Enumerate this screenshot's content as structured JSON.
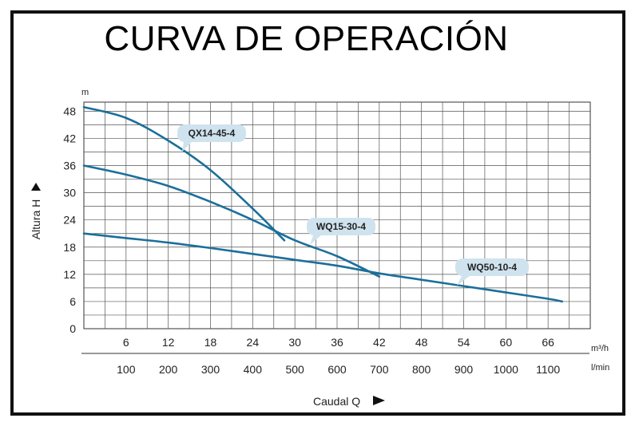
{
  "title": "CURVA DE OPERACIÓN",
  "chart_data": {
    "type": "line",
    "title": "CURVA DE OPERACIÓN",
    "ylabel": "Altura  H",
    "yunit": "m",
    "xlabel": "Caudal  Q",
    "xunit_primary": "m³/h",
    "xunit_secondary": "l/min",
    "xlim": [
      0,
      72
    ],
    "ylim": [
      0,
      50
    ],
    "xticks": [
      "6",
      "12",
      "18",
      "24",
      "30",
      "36",
      "42",
      "48",
      "54",
      "60",
      "66"
    ],
    "xticks_secondary": [
      "100",
      "200",
      "300",
      "400",
      "500",
      "600",
      "700",
      "800",
      "900",
      "1000",
      "1100"
    ],
    "yticks": [
      "0",
      "6",
      "12",
      "18",
      "24",
      "30",
      "36",
      "42",
      "48"
    ],
    "grid": true,
    "series": [
      {
        "name": "QX14-45-4",
        "x": [
          0,
          6,
          12,
          18,
          24,
          28.5
        ],
        "y": [
          48.9,
          46.5,
          41.5,
          35,
          26.5,
          19.5
        ]
      },
      {
        "name": "WQ15-30-4",
        "x": [
          0,
          6,
          12,
          18,
          24,
          30,
          36,
          42
        ],
        "y": [
          36,
          34,
          31.5,
          28,
          24,
          19.5,
          16,
          11.5
        ]
      },
      {
        "name": "WQ50-10-4",
        "x": [
          0,
          6,
          12,
          18,
          24,
          30,
          36,
          42,
          48,
          54,
          60,
          66,
          68
        ],
        "y": [
          21,
          20,
          19,
          17.8,
          16.5,
          15.2,
          13.9,
          12.2,
          10.8,
          9.4,
          8,
          6.6,
          6
        ]
      }
    ]
  }
}
